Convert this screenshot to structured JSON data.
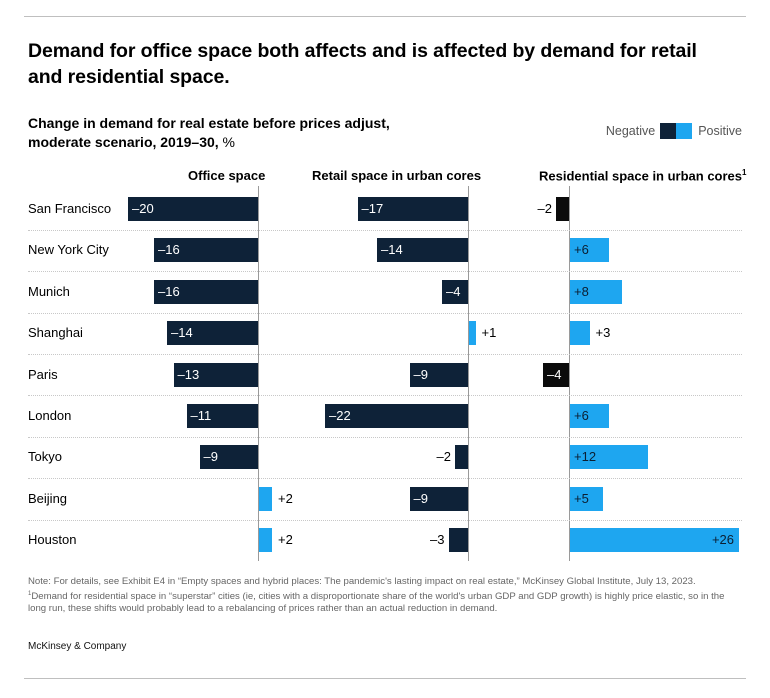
{
  "title": "Demand for office space both affects and is affected by demand for retail and residential space.",
  "subtitle_bold": "Change in demand for real estate before prices adjust, moderate scenario, 2019–30,",
  "subtitle_unit": " %",
  "legend": {
    "negative": "Negative",
    "positive": "Positive"
  },
  "colors": {
    "negative_office_retail": "#0e2238",
    "negative_residential": "#0b0b0b",
    "positive": "#1ea6f0"
  },
  "chart_data": {
    "type": "bar",
    "orientation": "horizontal",
    "categories": [
      "San Francisco",
      "New York City",
      "Munich",
      "Shanghai",
      "Paris",
      "London",
      "Tokyo",
      "Beijing",
      "Houston"
    ],
    "series": [
      {
        "name": "Office space",
        "values": [
          -20,
          -16,
          -16,
          -14,
          -13,
          -11,
          -9,
          2,
          2
        ],
        "labels": [
          "–20",
          "–16",
          "–16",
          "–14",
          "–13",
          "–11",
          "–9",
          "+2",
          "+2"
        ]
      },
      {
        "name": "Retail space in urban cores",
        "values": [
          -17,
          -14,
          -4,
          1,
          -9,
          -22,
          -2,
          -9,
          -3
        ],
        "labels": [
          "–17",
          "–14",
          "–4",
          "+1",
          "–9",
          "–22",
          "–2",
          "–9",
          "–3"
        ]
      },
      {
        "name": "Residential space in urban cores",
        "footnote_mark": "1",
        "values": [
          -2,
          6,
          8,
          3,
          -4,
          6,
          12,
          5,
          26
        ],
        "labels": [
          "–2",
          "+6",
          "+8",
          "+3",
          "–4",
          "+6",
          "+12",
          "+5",
          "+26"
        ]
      }
    ]
  },
  "notes": {
    "line1": "Note: For details, see Exhibit E4 in “Empty spaces and hybrid places: The pandemic's lasting impact on real estate,” McKinsey Global Institute, July 13, 2023.",
    "footnote_mark": "1",
    "line2": "Demand for residential space in “superstar” cities (ie, cities with a disproportionate share of the world's urban GDP and GDP growth) is highly price elastic, so in the long run, these shifts would probably lead to a rebalancing of prices rather than an actual reduction in demand."
  },
  "brand": "McKinsey & Company"
}
